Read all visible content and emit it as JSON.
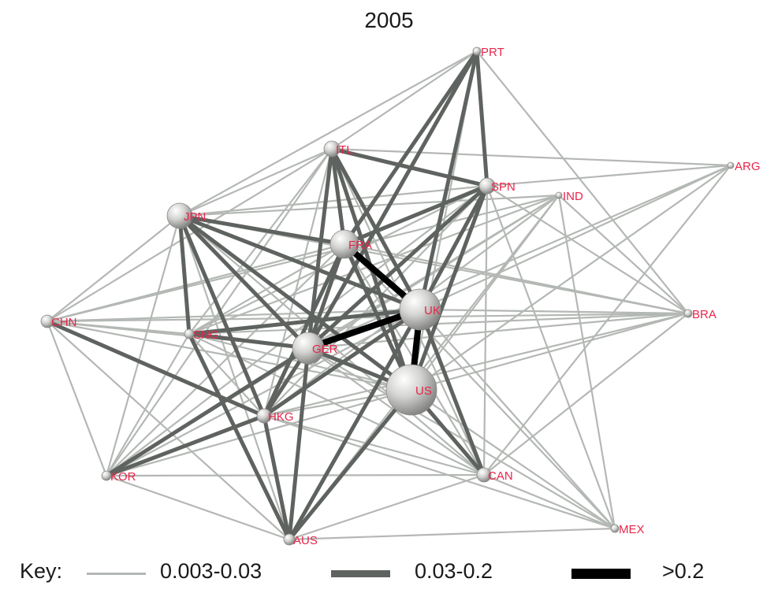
{
  "title": "2005",
  "colors": {
    "thin": "#b4b8b4",
    "medium": "#5f6360",
    "thick": "#000000",
    "label": "#e8254a"
  },
  "nodes": [
    {
      "id": "PRT",
      "label": "PRT"
    },
    {
      "id": "ITL",
      "label": "ITL"
    },
    {
      "id": "SPN",
      "label": "SPN"
    },
    {
      "id": "ARG",
      "label": "ARG"
    },
    {
      "id": "IND",
      "label": "IND"
    },
    {
      "id": "JPN",
      "label": "JPN"
    },
    {
      "id": "FRA",
      "label": "FRA"
    },
    {
      "id": "CHN",
      "label": "CHN"
    },
    {
      "id": "UK",
      "label": "UK"
    },
    {
      "id": "BRA",
      "label": "BRA"
    },
    {
      "id": "SNG",
      "label": "SNG"
    },
    {
      "id": "GER",
      "label": "GER"
    },
    {
      "id": "US",
      "label": "US"
    },
    {
      "id": "HKG",
      "label": "HKG"
    },
    {
      "id": "KOR",
      "label": "KOR"
    },
    {
      "id": "CAN",
      "label": "CAN"
    },
    {
      "id": "MEX",
      "label": "MEX"
    },
    {
      "id": "AUS",
      "label": "AUS"
    }
  ],
  "edges_thick": [
    [
      "FRA",
      "UK"
    ],
    [
      "GER",
      "UK"
    ],
    [
      "UK",
      "US"
    ]
  ],
  "edges_medium": [
    [
      "ITL",
      "SPN"
    ],
    [
      "ITL",
      "FRA"
    ],
    [
      "ITL",
      "UK"
    ],
    [
      "ITL",
      "GER"
    ],
    [
      "ITL",
      "US"
    ],
    [
      "PRT",
      "SPN"
    ],
    [
      "PRT",
      "UK"
    ],
    [
      "PRT",
      "FRA"
    ],
    [
      "PRT",
      "GER"
    ],
    [
      "SPN",
      "UK"
    ],
    [
      "SPN",
      "US"
    ],
    [
      "SPN",
      "GER"
    ],
    [
      "SPN",
      "FRA"
    ],
    [
      "JPN",
      "FRA"
    ],
    [
      "JPN",
      "UK"
    ],
    [
      "JPN",
      "GER"
    ],
    [
      "JPN",
      "US"
    ],
    [
      "JPN",
      "SNG"
    ],
    [
      "JPN",
      "HKG"
    ],
    [
      "FRA",
      "GER"
    ],
    [
      "FRA",
      "US"
    ],
    [
      "FRA",
      "HKG"
    ],
    [
      "CHN",
      "HKG"
    ],
    [
      "SNG",
      "UK"
    ],
    [
      "SNG",
      "GER"
    ],
    [
      "SNG",
      "AUS"
    ],
    [
      "GER",
      "US"
    ],
    [
      "GER",
      "HKG"
    ],
    [
      "GER",
      "AUS"
    ],
    [
      "UK",
      "CAN"
    ],
    [
      "UK",
      "AUS"
    ],
    [
      "UK",
      "HKG"
    ],
    [
      "US",
      "CAN"
    ],
    [
      "US",
      "AUS"
    ],
    [
      "HKG",
      "AUS"
    ],
    [
      "HKG",
      "KOR"
    ],
    [
      "KOR",
      "GER"
    ]
  ],
  "edges_thin": [
    [
      "PRT",
      "ITL"
    ],
    [
      "PRT",
      "JPN"
    ],
    [
      "PRT",
      "US"
    ],
    [
      "PRT",
      "BRA"
    ],
    [
      "ITL",
      "JPN"
    ],
    [
      "ITL",
      "CHN"
    ],
    [
      "ITL",
      "SNG"
    ],
    [
      "ITL",
      "HKG"
    ],
    [
      "ITL",
      "KOR"
    ],
    [
      "ITL",
      "ARG"
    ],
    [
      "ITL",
      "CAN"
    ],
    [
      "SPN",
      "ARG"
    ],
    [
      "SPN",
      "JPN"
    ],
    [
      "SPN",
      "SNG"
    ],
    [
      "SPN",
      "HKG"
    ],
    [
      "SPN",
      "MEX"
    ],
    [
      "SPN",
      "BRA"
    ],
    [
      "SPN",
      "CAN"
    ],
    [
      "SPN",
      "KOR"
    ],
    [
      "ARG",
      "US"
    ],
    [
      "ARG",
      "UK"
    ],
    [
      "ARG",
      "CAN"
    ],
    [
      "ARG",
      "GER"
    ],
    [
      "IND",
      "SNG"
    ],
    [
      "IND",
      "HKG"
    ],
    [
      "IND",
      "GER"
    ],
    [
      "IND",
      "US"
    ],
    [
      "IND",
      "JPN"
    ],
    [
      "IND",
      "CHN"
    ],
    [
      "IND",
      "KOR"
    ],
    [
      "IND",
      "AUS"
    ],
    [
      "IND",
      "BRA"
    ],
    [
      "IND",
      "MEX"
    ],
    [
      "JPN",
      "CHN"
    ],
    [
      "JPN",
      "KOR"
    ],
    [
      "JPN",
      "AUS"
    ],
    [
      "JPN",
      "CAN"
    ],
    [
      "JPN",
      "BRA"
    ],
    [
      "FRA",
      "CHN"
    ],
    [
      "FRA",
      "SNG"
    ],
    [
      "FRA",
      "KOR"
    ],
    [
      "FRA",
      "BRA"
    ],
    [
      "FRA",
      "CAN"
    ],
    [
      "FRA",
      "MEX"
    ],
    [
      "CHN",
      "SNG"
    ],
    [
      "CHN",
      "GER"
    ],
    [
      "CHN",
      "UK"
    ],
    [
      "CHN",
      "US"
    ],
    [
      "CHN",
      "KOR"
    ],
    [
      "CHN",
      "AUS"
    ],
    [
      "CHN",
      "BRA"
    ],
    [
      "UK",
      "BRA"
    ],
    [
      "UK",
      "MEX"
    ],
    [
      "UK",
      "KOR"
    ],
    [
      "BRA",
      "GER"
    ],
    [
      "BRA",
      "SNG"
    ],
    [
      "BRA",
      "US"
    ],
    [
      "BRA",
      "HKG"
    ],
    [
      "BRA",
      "CAN"
    ],
    [
      "SNG",
      "US"
    ],
    [
      "SNG",
      "HKG"
    ],
    [
      "SNG",
      "KOR"
    ],
    [
      "SNG",
      "CAN"
    ],
    [
      "GER",
      "CAN"
    ],
    [
      "GER",
      "MEX"
    ],
    [
      "US",
      "HKG"
    ],
    [
      "US",
      "KOR"
    ],
    [
      "US",
      "MEX"
    ],
    [
      "HKG",
      "CAN"
    ],
    [
      "HKG",
      "MEX"
    ],
    [
      "KOR",
      "AUS"
    ],
    [
      "KOR",
      "CAN"
    ],
    [
      "CAN",
      "AUS"
    ],
    [
      "CAN",
      "MEX"
    ],
    [
      "AUS",
      "MEX"
    ]
  ],
  "key": {
    "label": "Key:",
    "items": [
      {
        "label": "0.003-0.03",
        "weight": "thin"
      },
      {
        "label": "0.03-0.2",
        "weight": "medium"
      },
      {
        "label": ">0.2",
        "weight": "thick"
      }
    ]
  }
}
